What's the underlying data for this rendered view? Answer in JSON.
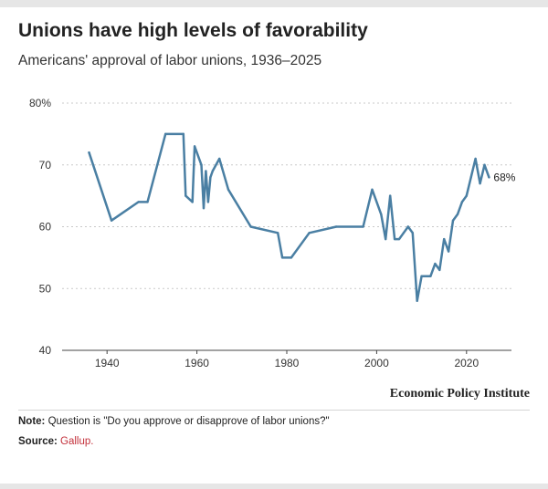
{
  "header": {
    "title": "Unions have high levels of favorability",
    "subtitle": "Americans' approval of labor unions, 1936–2025"
  },
  "footer": {
    "brand": "Economic Policy Institute",
    "note_label": "Note:",
    "note_text": "Question is \"Do you approve or disapprove of labor unions?\"",
    "source_label": "Source:",
    "source_text": "Gallup."
  },
  "chart_data": {
    "type": "line",
    "title": "Unions have high levels of favorability",
    "subtitle": "Americans' approval of labor unions, 1936–2025",
    "xlim": [
      1930,
      2030
    ],
    "ylim": [
      40,
      80
    ],
    "x_ticks": [
      1940,
      1960,
      1980,
      2000,
      2020
    ],
    "y_ticks": [
      {
        "value": 40,
        "label": "40"
      },
      {
        "value": 50,
        "label": "50"
      },
      {
        "value": 60,
        "label": "60"
      },
      {
        "value": 70,
        "label": "70"
      },
      {
        "value": 80,
        "label": "80%"
      }
    ],
    "grid": true,
    "line_color": "#4a7fa3",
    "end_label": "68%",
    "series": [
      {
        "x": [
          1936,
          1941,
          1947,
          1949,
          1953,
          1957,
          1957.5,
          1959,
          1959.5,
          1961,
          1961.5,
          1962,
          1962.5,
          1963,
          1963.5,
          1965,
          1967,
          1972,
          1978,
          1979,
          1981,
          1985,
          1991,
          1997,
          1999,
          2001,
          2002,
          2003,
          2004,
          2005,
          2006,
          2007,
          2008,
          2009,
          2010,
          2011,
          2012,
          2013,
          2014,
          2015,
          2016,
          2017,
          2018,
          2019,
          2020,
          2021,
          2022,
          2023,
          2024,
          2025
        ],
        "y": [
          72,
          61,
          64,
          64,
          75,
          75,
          65,
          64,
          73,
          70,
          63,
          69,
          64,
          68,
          69,
          71,
          66,
          60,
          59,
          55,
          55,
          59,
          60,
          60,
          66,
          62,
          58,
          65,
          58,
          58,
          59,
          60,
          59,
          48,
          52,
          52,
          52,
          54,
          53,
          58,
          56,
          61,
          62,
          64,
          65,
          68,
          71,
          67,
          70,
          68
        ]
      }
    ]
  }
}
